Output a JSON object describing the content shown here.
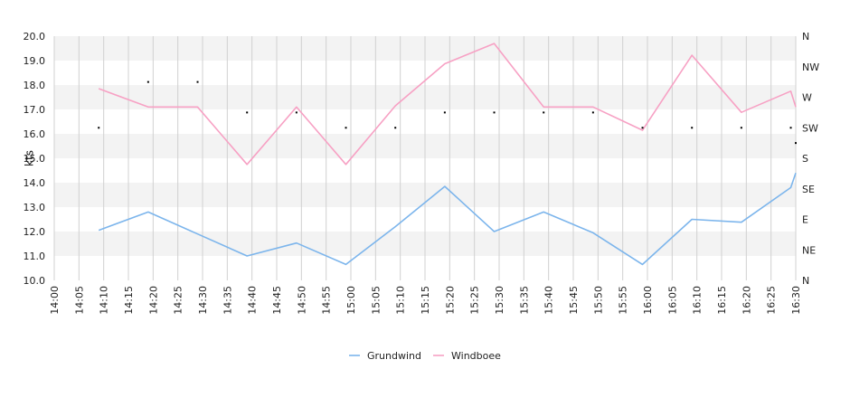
{
  "chart_data": {
    "type": "line",
    "ylabel": "kts",
    "ylim": [
      10,
      20
    ],
    "yticks": [
      "10.0",
      "11.0",
      "12.0",
      "13.0",
      "14.0",
      "15.0",
      "16.0",
      "17.0",
      "18.0",
      "19.0",
      "20.0"
    ],
    "x_range": [
      "14:00",
      "16:30"
    ],
    "xticks": [
      "14:00",
      "14:05",
      "14:10",
      "14:15",
      "14:20",
      "14:25",
      "14:30",
      "14:35",
      "14:40",
      "14:45",
      "14:50",
      "14:55",
      "15:00",
      "15:05",
      "15:10",
      "15:15",
      "15:20",
      "15:25",
      "15:30",
      "15:35",
      "15:40",
      "15:45",
      "15:50",
      "15:55",
      "16:00",
      "16:05",
      "16:10",
      "16:15",
      "16:20",
      "16:25",
      "16:30"
    ],
    "direction_axis": {
      "ticks": [
        "N",
        "NE",
        "E",
        "SE",
        "S",
        "SW",
        "W",
        "NW",
        "N"
      ]
    },
    "grid": true,
    "legend_position": "bottom-center",
    "series": [
      {
        "name": "Grundwind",
        "color": "#7cb5ec",
        "points": [
          [
            "14:09",
            12.05
          ],
          [
            "14:19",
            12.8
          ],
          [
            "14:29",
            11.9
          ],
          [
            "14:39",
            11.0
          ],
          [
            "14:49",
            11.53
          ],
          [
            "14:59",
            10.65
          ],
          [
            "15:09",
            12.2
          ],
          [
            "15:19",
            13.85
          ],
          [
            "15:29",
            12.0
          ],
          [
            "15:39",
            12.8
          ],
          [
            "15:49",
            11.95
          ],
          [
            "15:59",
            10.65
          ],
          [
            "16:09",
            12.5
          ],
          [
            "16:19",
            12.38
          ],
          [
            "16:29",
            13.8
          ],
          [
            "16:30",
            14.4
          ]
        ]
      },
      {
        "name": "Windboee",
        "color": "#f7a1c4",
        "points": [
          [
            "14:09",
            17.85
          ],
          [
            "14:19",
            17.1
          ],
          [
            "14:29",
            17.1
          ],
          [
            "14:39",
            14.75
          ],
          [
            "14:49",
            17.1
          ],
          [
            "14:59",
            14.75
          ],
          [
            "15:09",
            17.15
          ],
          [
            "15:19",
            18.87
          ],
          [
            "15:29",
            19.7
          ],
          [
            "15:39",
            17.1
          ],
          [
            "15:49",
            17.1
          ],
          [
            "15:59",
            16.15
          ],
          [
            "16:09",
            19.22
          ],
          [
            "16:19",
            16.88
          ],
          [
            "16:29",
            17.75
          ],
          [
            "16:30",
            17.1
          ]
        ]
      },
      {
        "name": "Direction",
        "type": "scatter",
        "color": "#000000",
        "points": [
          [
            "14:09",
            "SW"
          ],
          [
            "14:19",
            "W+"
          ],
          [
            "14:29",
            "W+"
          ],
          [
            "14:39",
            "W-"
          ],
          [
            "14:49",
            "W-"
          ],
          [
            "14:59",
            "SW"
          ],
          [
            "15:09",
            "SW"
          ],
          [
            "15:19",
            "W-"
          ],
          [
            "15:29",
            "W-"
          ],
          [
            "15:39",
            "W-"
          ],
          [
            "15:49",
            "W-"
          ],
          [
            "15:59",
            "SW"
          ],
          [
            "16:09",
            "SW"
          ],
          [
            "16:19",
            "SW"
          ],
          [
            "16:29",
            "SW"
          ],
          [
            "16:30",
            "SW-"
          ]
        ]
      }
    ],
    "legend": [
      {
        "name": "Grundwind",
        "color": "#7cb5ec"
      },
      {
        "name": "Windboee",
        "color": "#f7a1c4"
      }
    ]
  }
}
